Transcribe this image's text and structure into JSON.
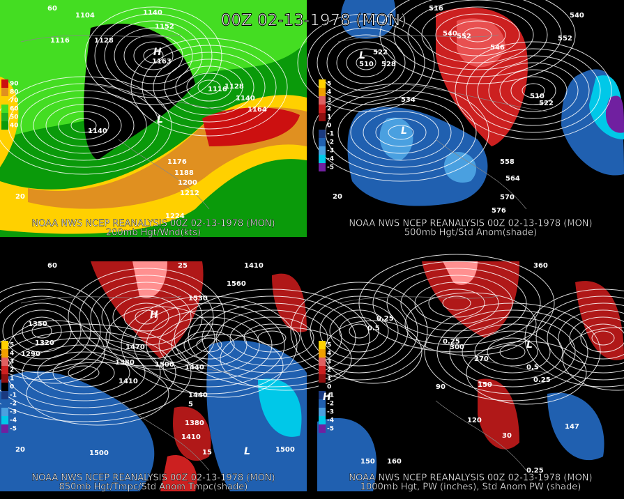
{
  "title": "00Z 02-13-1978 (MON)",
  "panels": [
    {
      "source": "NOAA NWS NCEP REANALYSIS 00Z 02-13-1978 (MON)",
      "caption": "200mb Hgt/Wnd(kts)",
      "legend": [
        "90",
        "80",
        "70",
        "60",
        "50",
        "40"
      ],
      "labels": [
        "1104",
        "1140",
        "1152",
        "1116",
        "1128",
        "H",
        "1163",
        "1116",
        "1128",
        "1140",
        "1164",
        "L",
        "1140",
        "1176",
        "1188",
        "1200",
        "1212",
        "1224",
        "60",
        "20"
      ]
    },
    {
      "source": "NOAA NWS NCEP REANALYSIS 00Z 02-13-1978 (MON)",
      "caption": "500mb Hgt/Std Anom(shade)",
      "legend": [
        "5",
        "4",
        "3",
        "2",
        "1",
        "0",
        "-1",
        "-2",
        "-3",
        "-4",
        "-5"
      ],
      "labels": [
        "516",
        "540",
        "552",
        "546",
        "552",
        "540",
        "L",
        "510",
        "522",
        "528",
        "534",
        "L",
        "510",
        "522",
        "558",
        "564",
        "570",
        "576",
        "20"
      ]
    },
    {
      "source": "NOAA NWS NCEP REANALYSIS 00Z 02-13-1978 (MON)",
      "caption": "850mb Hgt/Tmpc/Std Anom Tmpc(shade)",
      "legend": [
        "5",
        "4",
        "3",
        "2",
        "1",
        "0",
        "-1",
        "-2",
        "-3",
        "-4",
        "-5"
      ],
      "labels": [
        "60",
        "1410",
        "1530",
        "1560",
        "H",
        "1350",
        "1290",
        "1320",
        "1470",
        "1380",
        "1410",
        "1500",
        "1440",
        "1440",
        "1380",
        "1410",
        "1500",
        "1500",
        "25",
        "15",
        "20",
        "5",
        "L"
      ]
    },
    {
      "source": "NOAA NWS NCEP REANALYSIS 00Z 02-13-1978 (MON)",
      "caption": "1000mb Hgt, PW (inches), Std Anom PW (shade)",
      "legend": [
        "5",
        "4",
        "3",
        "2",
        "1",
        "0",
        "-1",
        "-2",
        "-3",
        "-4",
        "-5"
      ],
      "labels": [
        "360",
        "0.25",
        "0.5",
        "0.25",
        "270",
        "300",
        "90",
        "150",
        "120",
        "0.25",
        "0.5",
        "H",
        "150",
        "160",
        "0.25",
        "147",
        "L",
        "30"
      ]
    }
  ]
}
